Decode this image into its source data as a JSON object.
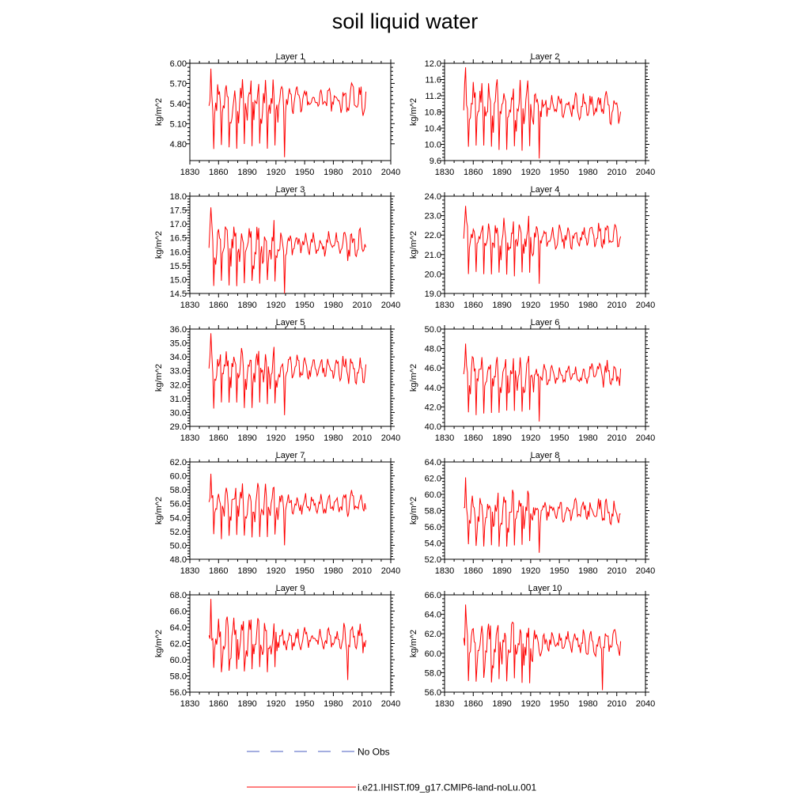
{
  "title": "soil liquid water",
  "colors": {
    "model": "#ff0000",
    "obs": "#4a5cc0"
  },
  "legend": {
    "obs_label": "No Obs",
    "model_label": "i.e21.IHIST.f09_g17.CMIP6-land-noLu.001"
  },
  "x_axis": {
    "range": [
      1830,
      2040
    ],
    "ticks": [
      1830,
      1860,
      1890,
      1920,
      1950,
      1980,
      2010,
      2040
    ]
  },
  "chart_data": [
    {
      "type": "line",
      "title": "Layer 1",
      "ylabel": "kg/m^2",
      "ylim": [
        4.55,
        6.0
      ],
      "yticks": [
        4.8,
        5.1,
        5.4,
        5.7,
        6.0
      ],
      "ytick_labels": [
        "4.80",
        "5.10",
        "5.40",
        "5.70",
        "6.00"
      ],
      "x_start": 1850,
      "x_end": 2014,
      "min": 4.6,
      "max": 5.92,
      "min_year": 1929,
      "level": 5.45
    },
    {
      "type": "line",
      "title": "Layer 2",
      "ylabel": "kg/m^2",
      "ylim": [
        9.6,
        12.0
      ],
      "yticks": [
        9.6,
        10.0,
        10.4,
        10.8,
        11.2,
        11.6,
        12.0
      ],
      "ytick_labels": [
        "9.6",
        "10.0",
        "10.4",
        "10.8",
        "11.2",
        "11.6",
        "12.0"
      ],
      "x_start": 1850,
      "x_end": 2014,
      "min": 9.65,
      "max": 11.9,
      "min_year": 1929,
      "level": 10.95
    },
    {
      "type": "line",
      "title": "Layer 3",
      "ylabel": "kg/m^2",
      "ylim": [
        14.5,
        18.0
      ],
      "yticks": [
        14.5,
        15.0,
        15.5,
        16.0,
        16.5,
        17.0,
        17.5,
        18.0
      ],
      "ytick_labels": [
        "14.5",
        "15.0",
        "15.5",
        "16.0",
        "16.5",
        "17.0",
        "17.5",
        "18.0"
      ],
      "x_start": 1850,
      "x_end": 2014,
      "min": 14.5,
      "max": 17.6,
      "min_year": 1929,
      "level": 16.25
    },
    {
      "type": "line",
      "title": "Layer 4",
      "ylabel": "kg/m^2",
      "ylim": [
        19.0,
        24.0
      ],
      "yticks": [
        19.0,
        20.0,
        21.0,
        22.0,
        23.0,
        24.0
      ],
      "ytick_labels": [
        "19.0",
        "20.0",
        "21.0",
        "22.0",
        "23.0",
        "24.0"
      ],
      "x_start": 1850,
      "x_end": 2014,
      "min": 19.5,
      "max": 23.5,
      "min_year": 1929,
      "level": 21.9
    },
    {
      "type": "line",
      "title": "Layer 5",
      "ylabel": "kg/m^2",
      "ylim": [
        29.0,
        36.0
      ],
      "yticks": [
        29.0,
        30.0,
        31.0,
        32.0,
        33.0,
        34.0,
        35.0,
        36.0
      ],
      "ytick_labels": [
        "29.0",
        "30.0",
        "31.0",
        "32.0",
        "33.0",
        "34.0",
        "35.0",
        "36.0"
      ],
      "x_start": 1850,
      "x_end": 2014,
      "min": 29.8,
      "max": 35.7,
      "min_year": 1929,
      "level": 33.2
    },
    {
      "type": "line",
      "title": "Layer 6",
      "ylabel": "kg/m^2",
      "ylim": [
        40.0,
        50.0
      ],
      "yticks": [
        40.0,
        42.0,
        44.0,
        46.0,
        48.0,
        50.0
      ],
      "ytick_labels": [
        "40.0",
        "42.0",
        "44.0",
        "46.0",
        "48.0",
        "50.0"
      ],
      "x_start": 1850,
      "x_end": 2014,
      "min": 40.5,
      "max": 48.5,
      "min_year": 1929,
      "level": 45.3
    },
    {
      "type": "line",
      "title": "Layer 7",
      "ylabel": "kg/m^2",
      "ylim": [
        48.0,
        62.0
      ],
      "yticks": [
        48.0,
        50.0,
        52.0,
        54.0,
        56.0,
        58.0,
        60.0,
        62.0
      ],
      "ytick_labels": [
        "48.0",
        "50.0",
        "52.0",
        "54.0",
        "56.0",
        "58.0",
        "60.0",
        "62.0"
      ],
      "x_start": 1850,
      "x_end": 2014,
      "min": 50.0,
      "max": 60.3,
      "min_year": 1929,
      "level": 56.0
    },
    {
      "type": "line",
      "title": "Layer 8",
      "ylabel": "kg/m^2",
      "ylim": [
        52.0,
        64.0
      ],
      "yticks": [
        52.0,
        54.0,
        56.0,
        58.0,
        60.0,
        62.0,
        64.0
      ],
      "ytick_labels": [
        "52.0",
        "54.0",
        "56.0",
        "58.0",
        "60.0",
        "62.0",
        "64.0"
      ],
      "x_start": 1850,
      "x_end": 2014,
      "min": 52.8,
      "max": 62.1,
      "min_year": 1929,
      "level": 58.0
    },
    {
      "type": "line",
      "title": "Layer 9",
      "ylabel": "kg/m^2",
      "ylim": [
        56.0,
        68.0
      ],
      "yticks": [
        56.0,
        58.0,
        60.0,
        62.0,
        64.0,
        66.0,
        68.0
      ],
      "ytick_labels": [
        "56.0",
        "58.0",
        "60.0",
        "62.0",
        "64.0",
        "66.0",
        "68.0"
      ],
      "x_start": 1850,
      "x_end": 2014,
      "min": 57.5,
      "max": 67.5,
      "min_year": 1995,
      "level": 62.5
    },
    {
      "type": "line",
      "title": "Layer 10",
      "ylabel": "kg/m^2",
      "ylim": [
        56.0,
        66.0
      ],
      "yticks": [
        56.0,
        58.0,
        60.0,
        62.0,
        64.0,
        66.0
      ],
      "ytick_labels": [
        "56.0",
        "58.0",
        "60.0",
        "62.0",
        "64.0",
        "66.0"
      ],
      "x_start": 1850,
      "x_end": 2014,
      "min": 56.2,
      "max": 65.0,
      "min_year": 1995,
      "level": 61.0
    }
  ]
}
